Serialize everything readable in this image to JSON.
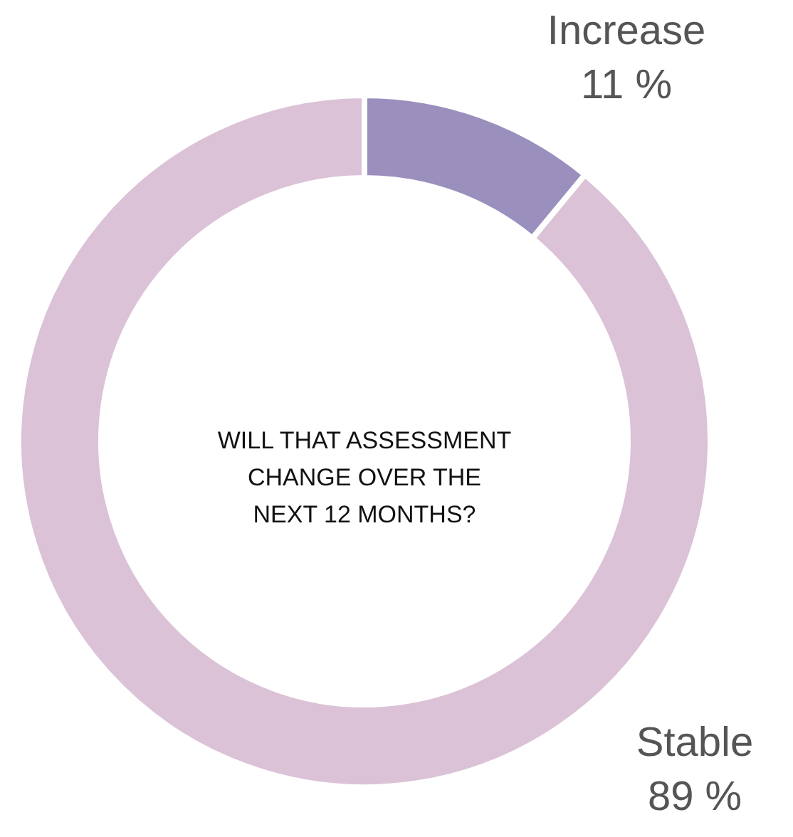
{
  "chart_data": {
    "type": "donut",
    "title": "WILL THAT ASSESSMENT\nCHANGE OVER THE\nNEXT 12 MONTHS?",
    "categories": [
      "Increase",
      "Stable"
    ],
    "values": [
      11,
      89
    ],
    "colors": [
      "#9b8fbd",
      "#dbc2d7"
    ],
    "value_labels": [
      "11 %",
      "89 %"
    ]
  }
}
